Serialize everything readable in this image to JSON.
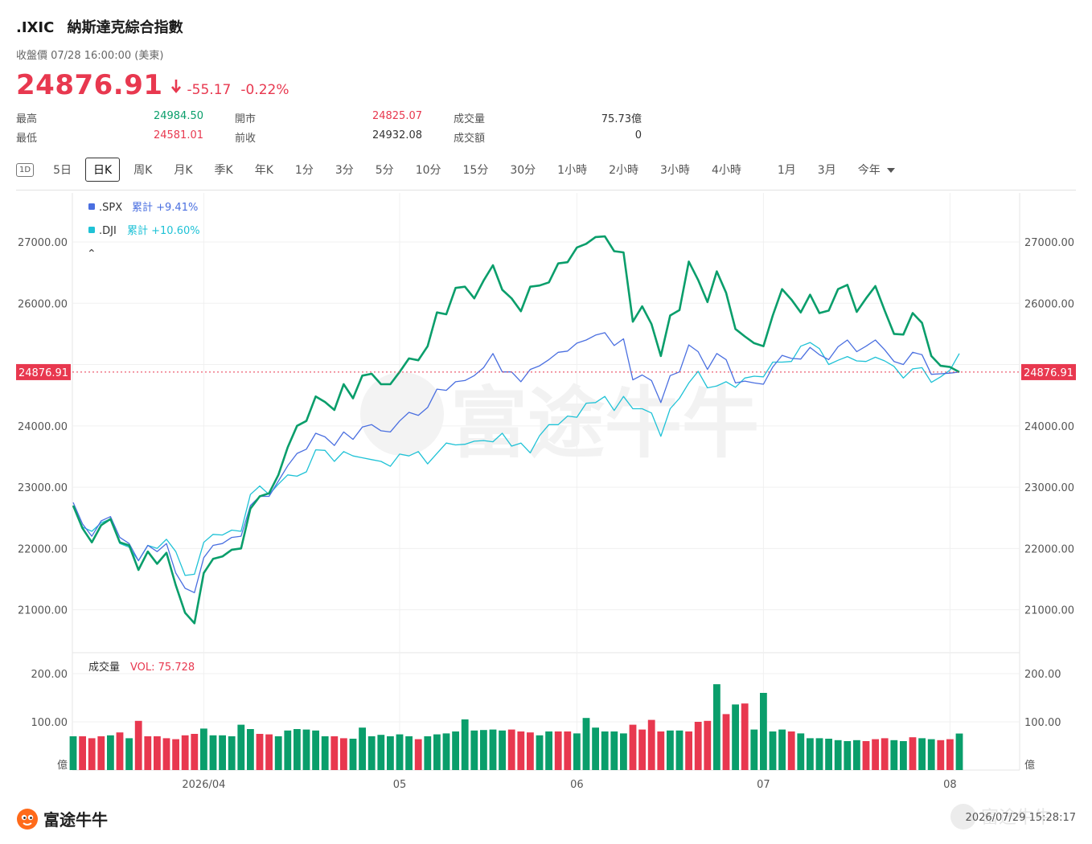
{
  "header": {
    "symbol": ".IXIC",
    "name": "納斯達克綜合指數",
    "status": "收盤價 07/28 16:00:00 (美東)",
    "price": "24876.91",
    "change": "-55.17",
    "change_pct": "-0.22%"
  },
  "stats": {
    "high_label": "最高",
    "high_value": "24984.50",
    "low_label": "最低",
    "low_value": "24581.01",
    "open_label": "開市",
    "open_value": "24825.07",
    "prev_close_label": "前收",
    "prev_close_value": "24932.08",
    "volume_label": "成交量",
    "volume_value": "75.73億",
    "turnover_label": "成交額",
    "turnover_value": "0"
  },
  "toolbar": {
    "icon_1d": "1D",
    "items": [
      "5日",
      "日K",
      "周K",
      "月K",
      "季K",
      "年K",
      "1分",
      "3分",
      "5分",
      "10分",
      "15分",
      "30分",
      "1小時",
      "2小時",
      "3小時",
      "4小時"
    ],
    "ranges": [
      "1月",
      "3月",
      "今年"
    ],
    "active": "日K"
  },
  "colors": {
    "up": "#e8384f",
    "down": "#0a9e6b",
    "ixic": "#0a9e6b",
    "spx": "#4a6fe0",
    "dji": "#1fc2d6"
  },
  "footer": {
    "brand": "富途牛牛",
    "watermark": "富途牛牛",
    "timestamp": "2026/07/29 15:28:17"
  },
  "chart_data": [
    {
      "type": "line",
      "title": "",
      "y_ticks": [
        "27000.00",
        "26000.00",
        "24000.00",
        "23000.00",
        "22000.00",
        "21000.00"
      ],
      "ylim": [
        20300,
        27800
      ],
      "last_price_label": "24876.91",
      "last_price_value": 24876.91,
      "x_tick_labels": [
        "2026/04",
        "05",
        "06",
        "07",
        "08"
      ],
      "x_tick_index": [
        14,
        35,
        54,
        74,
        94
      ],
      "legend": [
        {
          "name": ".SPX",
          "label": "累計 +9.41%"
        },
        {
          "name": ".DJI",
          "label": "累計 +10.60%"
        }
      ],
      "collapse_glyph": "⌃",
      "series": [
        {
          "name": ".IXIC",
          "values": [
            22700,
            22330,
            22100,
            22380,
            22480,
            22100,
            22050,
            21650,
            21950,
            21750,
            21930,
            21400,
            20950,
            20780,
            21600,
            21830,
            21870,
            21980,
            22000,
            22650,
            22850,
            22900,
            23200,
            23650,
            24000,
            24080,
            24480,
            24390,
            24260,
            24680,
            24450,
            24820,
            24850,
            24680,
            24680,
            24880,
            25100,
            25070,
            25300,
            25850,
            25820,
            26250,
            26270,
            26080,
            26370,
            26620,
            26220,
            26080,
            25870,
            26270,
            26290,
            26340,
            26650,
            26670,
            26910,
            26970,
            27080,
            27090,
            26850,
            26830,
            25700,
            25950,
            25660,
            25140,
            25800,
            25890,
            26680,
            26380,
            26020,
            26520,
            26170,
            25580,
            25460,
            25350,
            25300,
            25800,
            26230,
            26060,
            25850,
            26140,
            25840,
            25880,
            26230,
            26300,
            25860,
            26080,
            26280,
            25880,
            25500,
            25490,
            25840,
            25680,
            25140,
            24980,
            24960,
            24876.91
          ]
        },
        {
          "name": ".SPX",
          "values": [
            22750,
            22400,
            22200,
            22450,
            22520,
            22180,
            22080,
            21800,
            22050,
            21950,
            22080,
            21600,
            21350,
            21280,
            21850,
            22050,
            22080,
            22180,
            22200,
            22700,
            22850,
            22850,
            23100,
            23350,
            23550,
            23620,
            23880,
            23820,
            23680,
            23900,
            23780,
            23980,
            24020,
            23920,
            23900,
            24080,
            24220,
            24170,
            24300,
            24600,
            24580,
            24720,
            24740,
            24820,
            24950,
            25180,
            24880,
            24880,
            24720,
            24920,
            24980,
            25080,
            25200,
            25220,
            25350,
            25400,
            25480,
            25520,
            25310,
            25420,
            24750,
            24830,
            24740,
            24380,
            24820,
            24880,
            25320,
            25210,
            24920,
            25180,
            25080,
            24700,
            24730,
            24700,
            24680,
            24960,
            25150,
            25100,
            25090,
            25280,
            25160,
            25080,
            25290,
            25400,
            25210,
            25300,
            25400,
            25240,
            25050,
            25000,
            25200,
            25160,
            24840,
            24850,
            24860,
            24876.91
          ]
        },
        {
          "name": ".DJI",
          "values": [
            22680,
            22350,
            22280,
            22420,
            22480,
            22080,
            22020,
            21800,
            22050,
            22000,
            22150,
            21950,
            21560,
            21580,
            22100,
            22230,
            22220,
            22300,
            22280,
            22880,
            23020,
            22880,
            23050,
            23200,
            23180,
            23250,
            23610,
            23600,
            23420,
            23580,
            23510,
            23480,
            23450,
            23420,
            23340,
            23540,
            23510,
            23580,
            23380,
            23550,
            23720,
            23690,
            23700,
            23750,
            23760,
            23740,
            23880,
            23670,
            23720,
            23560,
            23840,
            24020,
            24020,
            24160,
            24140,
            24370,
            24380,
            24480,
            24250,
            24480,
            24280,
            24280,
            24210,
            23830,
            24280,
            24450,
            24700,
            24890,
            24620,
            24650,
            24720,
            24630,
            24780,
            24810,
            24800,
            25040,
            25040,
            25050,
            25300,
            25360,
            25260,
            25000,
            25070,
            25130,
            25060,
            25050,
            25120,
            25060,
            24970,
            24780,
            24930,
            24950,
            24710,
            24800,
            24910,
            25180
          ]
        }
      ]
    },
    {
      "type": "bar",
      "title": "成交量",
      "indicator_label": "VOL: 75.728",
      "y_ticks": [
        "200.00",
        "100.00"
      ],
      "y_unit": "億",
      "ylim": [
        0,
        200
      ],
      "values": [
        70,
        70,
        66,
        70,
        72,
        78,
        66,
        102,
        70,
        70,
        66,
        64,
        72,
        75,
        86,
        72,
        72,
        70,
        94,
        85,
        75,
        74,
        70,
        82,
        85,
        84,
        82,
        70,
        70,
        66,
        65,
        88,
        70,
        73,
        70,
        74,
        70,
        64,
        70,
        74,
        76,
        80,
        105,
        82,
        83,
        84,
        82,
        84,
        80,
        78,
        72,
        80,
        80,
        80,
        76,
        108,
        88,
        80,
        80,
        76,
        94,
        84,
        104,
        80,
        82,
        82,
        80,
        100,
        102,
        178,
        116,
        136,
        138,
        84,
        160,
        80,
        84,
        80,
        76,
        66,
        66,
        65,
        62,
        60,
        62,
        60,
        64,
        66,
        62,
        60,
        68,
        66,
        64,
        62,
        64,
        75.728
      ],
      "direction": [
        "down",
        "up",
        "up",
        "up",
        "down",
        "up",
        "down",
        "up",
        "up",
        "up",
        "up",
        "up",
        "up",
        "up",
        "down",
        "down",
        "down",
        "down",
        "down",
        "down",
        "up",
        "up",
        "down",
        "down",
        "down",
        "down",
        "down",
        "down",
        "up",
        "up",
        "down",
        "down",
        "down",
        "down",
        "down",
        "down",
        "down",
        "up",
        "down",
        "down",
        "down",
        "down",
        "down",
        "down",
        "down",
        "down",
        "down",
        "up",
        "up",
        "up",
        "down",
        "down",
        "up",
        "up",
        "down",
        "down",
        "down",
        "down",
        "down",
        "down",
        "up",
        "up",
        "up",
        "up",
        "down",
        "down",
        "up",
        "up",
        "up",
        "down",
        "up",
        "down",
        "up",
        "down",
        "down",
        "down",
        "down",
        "up",
        "down",
        "down",
        "down",
        "down",
        "down",
        "down",
        "down",
        "up",
        "up",
        "up",
        "down",
        "down",
        "up",
        "down",
        "down",
        "up",
        "up",
        "down"
      ]
    }
  ]
}
